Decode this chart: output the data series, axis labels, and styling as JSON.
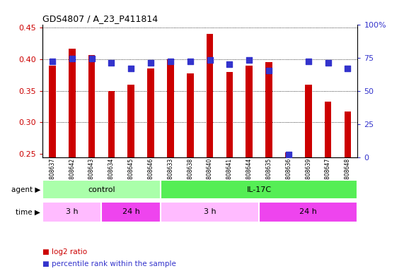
{
  "title": "GDS4807 / A_23_P411814",
  "samples": [
    "GSM808637",
    "GSM808642",
    "GSM808643",
    "GSM808634",
    "GSM808645",
    "GSM808646",
    "GSM808633",
    "GSM808638",
    "GSM808640",
    "GSM808641",
    "GSM808644",
    "GSM808635",
    "GSM808636",
    "GSM808639",
    "GSM808647",
    "GSM808648"
  ],
  "log2_ratio": [
    0.39,
    0.417,
    0.407,
    0.35,
    0.36,
    0.385,
    0.4,
    0.378,
    0.44,
    0.38,
    0.39,
    0.395,
    0.253,
    0.36,
    0.333,
    0.317
  ],
  "percentile": [
    72,
    74,
    74,
    71,
    67,
    71,
    72,
    72,
    73,
    70,
    73,
    65,
    2,
    72,
    71,
    67
  ],
  "bar_color": "#cc0000",
  "dot_color": "#3333cc",
  "ylim_left": [
    0.245,
    0.455
  ],
  "ylim_right": [
    0,
    100
  ],
  "yticks_left": [
    0.25,
    0.3,
    0.35,
    0.4,
    0.45
  ],
  "yticks_right": [
    0,
    25,
    50,
    75,
    100
  ],
  "ytick_labels_right": [
    "0",
    "25",
    "50",
    "75",
    "100%"
  ],
  "agent_groups": [
    {
      "label": "control",
      "start": 0,
      "end": 6,
      "color": "#aaffaa"
    },
    {
      "label": "IL-17C",
      "start": 6,
      "end": 16,
      "color": "#55ee55"
    }
  ],
  "time_groups": [
    {
      "label": "3 h",
      "start": 0,
      "end": 3,
      "color": "#ffbbff"
    },
    {
      "label": "24 h",
      "start": 3,
      "end": 6,
      "color": "#ee44ee"
    },
    {
      "label": "3 h",
      "start": 6,
      "end": 11,
      "color": "#ffbbff"
    },
    {
      "label": "24 h",
      "start": 11,
      "end": 16,
      "color": "#ee44ee"
    }
  ],
  "legend_items": [
    {
      "label": "log2 ratio",
      "color": "#cc0000"
    },
    {
      "label": "percentile rank within the sample",
      "color": "#3333cc"
    }
  ],
  "tick_label_color_left": "#cc0000",
  "tick_label_color_right": "#3333cc",
  "bar_width": 0.35,
  "dot_size": 28,
  "grid_dotted_at": [
    0.3,
    0.35,
    0.4,
    0.45
  ]
}
